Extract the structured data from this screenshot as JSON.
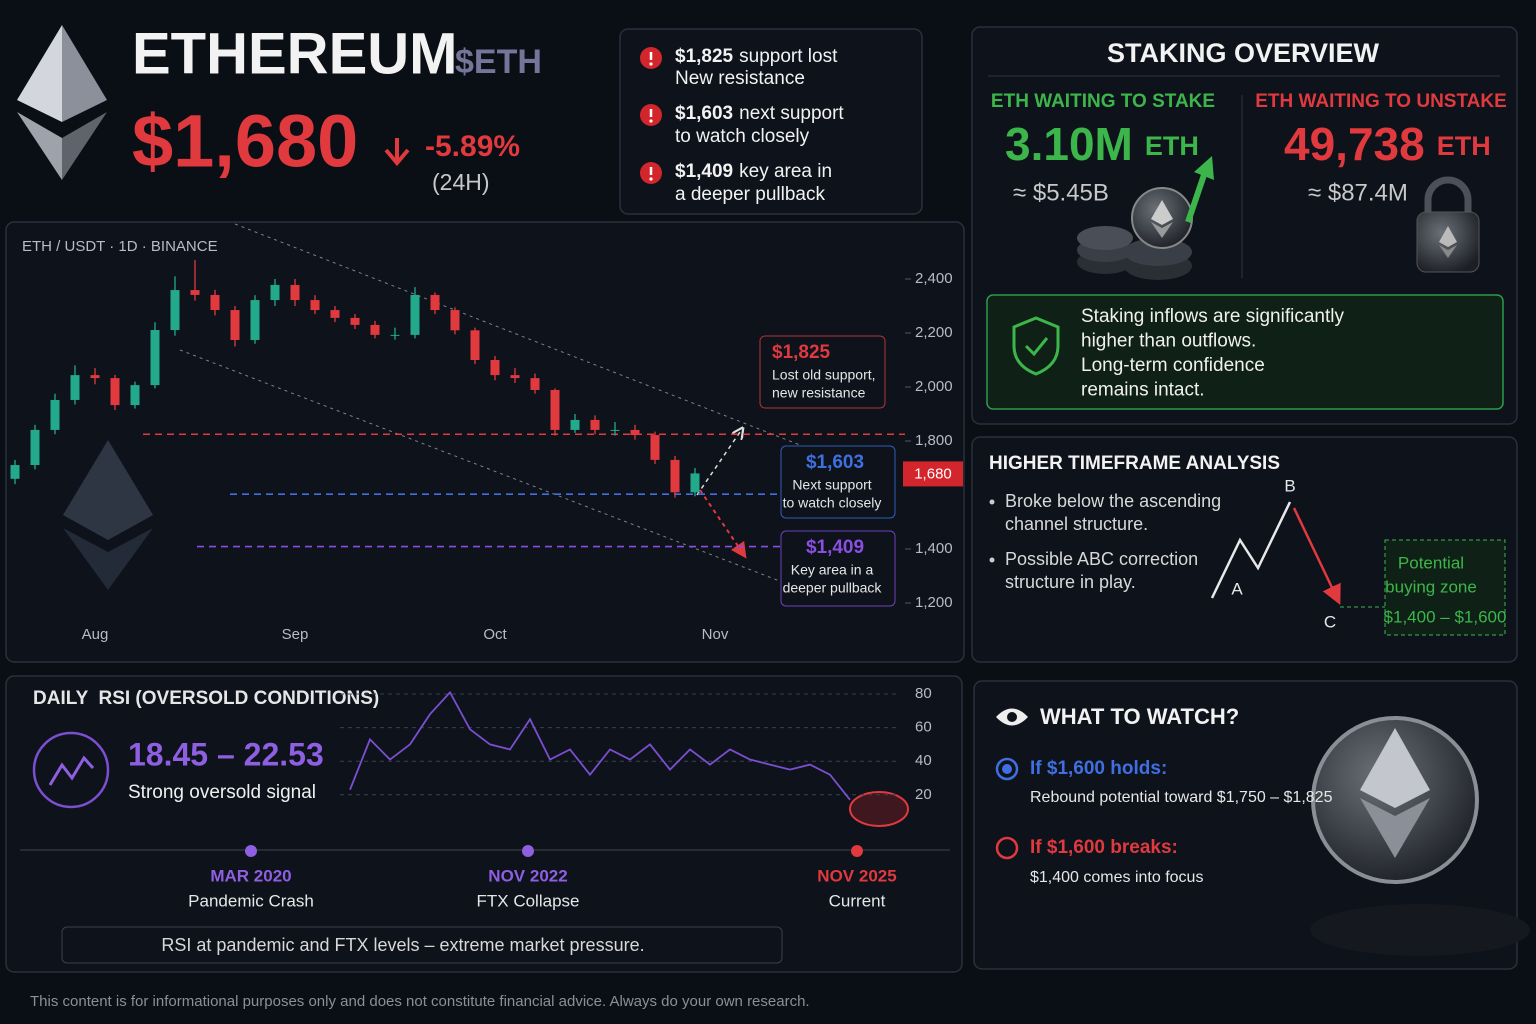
{
  "header": {
    "title": "ETHEREUM",
    "ticker": "$ETH",
    "price": "$1,680",
    "change": "-5.89%",
    "period": "(24H)"
  },
  "alerts": [
    {
      "price": "$1,825",
      "text": "support lost",
      "line2": "New resistance"
    },
    {
      "price": "$1,603",
      "text": "next support",
      "line2": "to watch closely"
    },
    {
      "price": "$1,409",
      "text": "key area in",
      "line2": "a deeper pullback"
    }
  ],
  "chart_data": [
    {
      "type": "candlestick",
      "title": "ETH / USDT · 1D · BINANCE",
      "categories": [
        null,
        null,
        null,
        null,
        "Aug",
        null,
        null,
        null,
        null,
        null,
        null,
        null,
        null,
        null,
        "Sep",
        null,
        null,
        null,
        null,
        null,
        null,
        null,
        null,
        null,
        "Oct",
        null,
        null,
        null,
        null,
        null,
        null,
        null,
        null,
        null,
        null,
        "Nov"
      ],
      "open": [
        1660,
        1711,
        1841,
        1952,
        2044,
        2033,
        1933,
        2007,
        2211,
        2359,
        2341,
        2285,
        2174,
        2322,
        2378,
        2322,
        2285,
        2256,
        2230,
        2193,
        2193,
        2341,
        2285,
        2210,
        2100,
        2044,
        2033,
        1989,
        1841,
        1878,
        1841,
        1841,
        1822,
        1730,
        1610,
        null
      ],
      "high": [
        1730,
        1860,
        1975,
        2080,
        2070,
        2045,
        2020,
        2240,
        2410,
        2470,
        2360,
        2300,
        2340,
        2400,
        2400,
        2340,
        2300,
        2270,
        2245,
        2220,
        2370,
        2350,
        2295,
        2220,
        2115,
        2070,
        2050,
        1995,
        1900,
        1895,
        1870,
        1860,
        1835,
        1745,
        1700,
        null
      ],
      "low": [
        1640,
        1695,
        1825,
        1935,
        2010,
        1915,
        1920,
        1995,
        2190,
        2320,
        2265,
        2150,
        2160,
        2300,
        2300,
        2270,
        2240,
        2215,
        2180,
        2175,
        2180,
        2270,
        2195,
        2085,
        2025,
        2015,
        1975,
        1820,
        1830,
        1825,
        1820,
        1805,
        1715,
        1590,
        1595,
        null
      ],
      "close": [
        1711,
        1841,
        1952,
        2044,
        2033,
        1933,
        2007,
        2211,
        2359,
        2341,
        2285,
        2174,
        2322,
        2378,
        2322,
        2285,
        2256,
        2230,
        2193,
        2193,
        2341,
        2285,
        2210,
        2100,
        2044,
        2033,
        1989,
        1841,
        1878,
        1841,
        1841,
        1822,
        1730,
        1610,
        1680,
        null
      ],
      "up_color": "#23a98c",
      "down_color": "#e0393e",
      "ylim": [
        1100,
        2600
      ],
      "yticks": [
        {
          "value": 1200,
          "label": "1,200"
        },
        {
          "value": 1400,
          "label": "1,400"
        },
        {
          "value": 1800,
          "label": "1,800"
        },
        {
          "value": 2000,
          "label": "2,000"
        },
        {
          "value": 2200,
          "label": "2,200"
        },
        {
          "value": 2400,
          "label": "2,400"
        }
      ],
      "current": {
        "value": 1680,
        "label": "1,680",
        "color": "#d3262c"
      },
      "levels": [
        {
          "value": 1825,
          "label": "$1,825",
          "note": [
            "Lost old support,",
            "new resistance"
          ],
          "color": "#e0393e"
        },
        {
          "value": 1603,
          "label": "$1,603",
          "note": [
            "Next support",
            "to watch closely"
          ],
          "color": "#3f6fe0"
        },
        {
          "value": 1409,
          "label": "$1,409",
          "note": [
            "Key area in a",
            "deeper pullback"
          ],
          "color": "#8a4fe0"
        }
      ]
    },
    {
      "type": "line",
      "title": "DAILY  RSI (OVERSOLD CONDITIONS)",
      "values": [
        23,
        53,
        41,
        50,
        68,
        81,
        59,
        50,
        47,
        65,
        41,
        47,
        32,
        47,
        41,
        50,
        35,
        47,
        38,
        47,
        41,
        38,
        35,
        38,
        32,
        17
      ],
      "color": "#7b4fd0",
      "ylim": [
        5,
        83
      ],
      "yticks": [
        20,
        40,
        60,
        80
      ],
      "range": "18.45 – 22.53",
      "subtitle": "Strong oversold signal"
    }
  ],
  "rsi_timeline": [
    {
      "date": "MAR 2020",
      "label": "Pandemic Crash",
      "color": "#8e5fe0"
    },
    {
      "date": "NOV 2022",
      "label": "FTX Collapse",
      "color": "#8e5fe0"
    },
    {
      "date": "NOV 2025",
      "label": "Current",
      "color": "#e0393e"
    }
  ],
  "rsi_note": "RSI at pandemic and FTX levels – extreme market pressure.",
  "staking": {
    "title": "STAKING OVERVIEW",
    "stake": {
      "label": "ETH WAITING TO STAKE",
      "amount": "3.10M",
      "unit": "ETH",
      "usd": "≈ $5.45B"
    },
    "unstake": {
      "label": "ETH WAITING TO UNSTAKE",
      "amount": "49,738",
      "unit": "ETH",
      "usd": "≈ $87.4M"
    },
    "note": [
      "Staking inflows are significantly",
      "higher than outflows.",
      "Long-term confidence",
      "remains intact."
    ]
  },
  "htf": {
    "title": "HIGHER TIMEFRAME ANALYSIS",
    "bullets": [
      [
        "Broke below the ascending",
        "channel structure."
      ],
      [
        "Possible ABC correction",
        "structure in play."
      ]
    ],
    "points": [
      "A",
      "B",
      "C"
    ],
    "zone": [
      "Potential",
      "buying zone"
    ],
    "zone_range": "$1,400 – $1,600"
  },
  "watch": {
    "title": "WHAT TO WATCH?",
    "holds": {
      "title": "If $1,600 holds:",
      "text": "Rebound potential toward $1,750 – $1,825"
    },
    "breaks": {
      "title": "If $1,600 breaks:",
      "text": "$1,400 comes into focus"
    }
  },
  "disclaimer": "This content is for informational purposes only and does not constitute financial advice. Always do your own research."
}
